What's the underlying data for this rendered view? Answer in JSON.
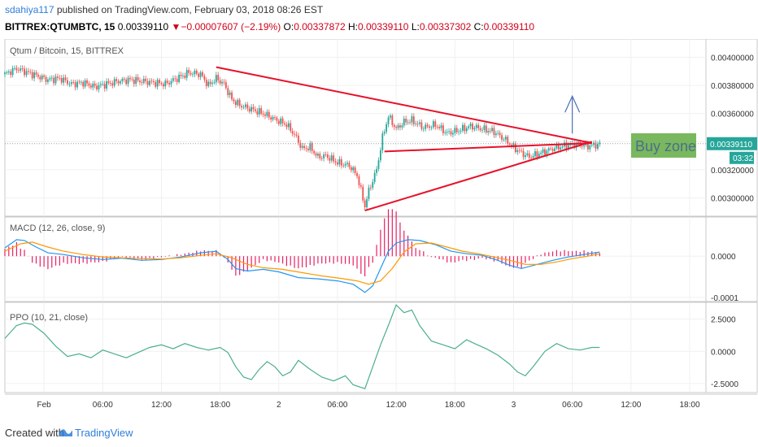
{
  "header": {
    "author": "sdahiya117",
    "published_text": " published on TradingView.com, February 03, 2018 08:26 EST",
    "symbol": "BITTREX:QTUMBTC, 15",
    "last": "0.00339110",
    "change_arrow": "▼",
    "change": "−0.00007607 (−2.19%)",
    "o_label": "O:",
    "o_value": "0.00337872",
    "h_label": "H:",
    "h_value": "0.00339110",
    "l_label": "L:",
    "l_value": "0.00337302",
    "c_label": "C:",
    "c_value": "0.00339110"
  },
  "footer": {
    "created_with": "Created with",
    "brand": "TradingView",
    "logo_icon": "tradingview-logo-icon"
  },
  "colors": {
    "up": "#26a69a",
    "down": "#ef5350",
    "trend": "#e8102a",
    "macd": "#2196f3",
    "signal": "#ff9800",
    "hist": "#e91e63",
    "ppo": "#4caf8a",
    "buyzone": "#6ab04c",
    "arrow": "#4a6fb5"
  },
  "chart_data": [
    {
      "type": "candlestick",
      "title": "Qtum / Bitcoin, 15, BITTREX",
      "y_ticks": [
        "0.00400000",
        "0.00380000",
        "0.00360000",
        "0.00340000",
        "0.00320000",
        "0.00300000"
      ],
      "y_tick_values": [
        0.004,
        0.0038,
        0.0036,
        0.0034,
        0.0032,
        0.003
      ],
      "ylim": [
        0.00287,
        0.00413
      ],
      "last_price_label": "0.00339110",
      "countdown_label": "03:32",
      "annotation_text": "Buy zone",
      "price_path": [
        [
          0,
          0.00388
        ],
        [
          6,
          0.00392
        ],
        [
          10,
          0.0039
        ],
        [
          16,
          0.00387
        ],
        [
          22,
          0.00384
        ],
        [
          28,
          0.00385
        ],
        [
          34,
          0.00381
        ],
        [
          40,
          0.00382
        ],
        [
          46,
          0.00379
        ],
        [
          52,
          0.00381
        ],
        [
          58,
          0.00383
        ],
        [
          64,
          0.00384
        ],
        [
          70,
          0.00383
        ],
        [
          76,
          0.00382
        ],
        [
          82,
          0.00381
        ],
        [
          88,
          0.00385
        ],
        [
          94,
          0.00389
        ],
        [
          100,
          0.00388
        ],
        [
          104,
          0.0038
        ],
        [
          108,
          0.00385
        ],
        [
          112,
          0.00381
        ],
        [
          116,
          0.0037
        ],
        [
          120,
          0.00366
        ],
        [
          126,
          0.00363
        ],
        [
          132,
          0.0036
        ],
        [
          138,
          0.00356
        ],
        [
          144,
          0.00352
        ],
        [
          148,
          0.00345
        ],
        [
          152,
          0.00335
        ],
        [
          156,
          0.00336
        ],
        [
          160,
          0.00329
        ],
        [
          164,
          0.0033
        ],
        [
          170,
          0.00325
        ],
        [
          176,
          0.00323
        ],
        [
          180,
          0.00316
        ],
        [
          184,
          0.00294
        ],
        [
          186,
          0.00305
        ],
        [
          190,
          0.0032
        ],
        [
          193,
          0.00343
        ],
        [
          196,
          0.00358
        ],
        [
          200,
          0.00349
        ],
        [
          204,
          0.00354
        ],
        [
          208,
          0.00355
        ],
        [
          214,
          0.0035
        ],
        [
          220,
          0.00352
        ],
        [
          226,
          0.00346
        ],
        [
          232,
          0.00348
        ],
        [
          238,
          0.00351
        ],
        [
          244,
          0.00349
        ],
        [
          250,
          0.00347
        ],
        [
          256,
          0.00341
        ],
        [
          260,
          0.00336
        ],
        [
          264,
          0.00332
        ],
        [
          268,
          0.00329
        ],
        [
          272,
          0.00331
        ],
        [
          276,
          0.00333
        ],
        [
          280,
          0.00335
        ],
        [
          286,
          0.00337
        ],
        [
          292,
          0.00338
        ],
        [
          298,
          0.00337
        ],
        [
          304,
          0.00338
        ]
      ],
      "trendlines": [
        {
          "from": [
            108,
            0.00393
          ],
          "to": [
            300,
            0.00339
          ]
        },
        {
          "from": [
            184,
            0.00291
          ],
          "to": [
            300,
            0.0034
          ]
        },
        {
          "from": [
            194,
            0.00333
          ],
          "to": [
            300,
            0.00339
          ]
        }
      ],
      "arrow_point": [
        290,
        0.0034
      ]
    },
    {
      "type": "line",
      "title": "MACD (12, 26, close, 9)",
      "y_ticks": [
        "0.0000",
        "-0.0001"
      ],
      "y_tick_values": [
        0.0,
        -0.0001
      ],
      "ylim": [
        -0.00011,
        9.5e-05
      ],
      "series": [
        {
          "name": "",
          "style": "macd",
          "points": [
            [
              0,
              2e-05
            ],
            [
              6,
              4e-05
            ],
            [
              10,
              3.8e-05
            ],
            [
              16,
              2.2e-05
            ],
            [
              22,
              8e-06
            ],
            [
              30,
              4e-06
            ],
            [
              40,
              -4e-06
            ],
            [
              50,
              -8e-06
            ],
            [
              60,
              -5e-06
            ],
            [
              70,
              -1e-05
            ],
            [
              80,
              -8e-06
            ],
            [
              90,
              -2e-06
            ],
            [
              100,
              8e-06
            ],
            [
              108,
              1.2e-05
            ],
            [
              114,
              -8e-06
            ],
            [
              118,
              -3e-05
            ],
            [
              124,
              -3.6e-05
            ],
            [
              132,
              -3.2e-05
            ],
            [
              140,
              -3.8e-05
            ],
            [
              150,
              -5.2e-05
            ],
            [
              160,
              -5.5e-05
            ],
            [
              170,
              -6e-05
            ],
            [
              178,
              -6.8e-05
            ],
            [
              184,
              -8.8e-05
            ],
            [
              188,
              -7.2e-05
            ],
            [
              192,
              -3e-05
            ],
            [
              196,
              1.2e-05
            ],
            [
              200,
              3.2e-05
            ],
            [
              206,
              4e-05
            ],
            [
              212,
              3.8e-05
            ],
            [
              220,
              2.8e-05
            ],
            [
              228,
              1.2e-05
            ],
            [
              236,
              6e-06
            ],
            [
              244,
              2e-06
            ],
            [
              252,
              -1e-05
            ],
            [
              258,
              -2.2e-05
            ],
            [
              264,
              -3e-05
            ],
            [
              272,
              -2e-05
            ],
            [
              280,
              -1e-05
            ],
            [
              288,
              -2e-06
            ],
            [
              296,
              4e-06
            ],
            [
              304,
              1e-05
            ]
          ]
        },
        {
          "name": "",
          "style": "signal",
          "points": [
            [
              0,
              1.2e-05
            ],
            [
              8,
              3e-05
            ],
            [
              14,
              3.4e-05
            ],
            [
              22,
              2.2e-05
            ],
            [
              30,
              1.2e-05
            ],
            [
              40,
              4e-06
            ],
            [
              50,
              -2e-06
            ],
            [
              60,
              -4e-06
            ],
            [
              70,
              -6e-06
            ],
            [
              80,
              -7e-06
            ],
            [
              90,
              -4e-06
            ],
            [
              100,
              2e-06
            ],
            [
              108,
              6e-06
            ],
            [
              116,
              -4e-06
            ],
            [
              124,
              -2e-05
            ],
            [
              132,
              -2.8e-05
            ],
            [
              142,
              -3.2e-05
            ],
            [
              152,
              -4e-05
            ],
            [
              162,
              -4.8e-05
            ],
            [
              172,
              -5.4e-05
            ],
            [
              180,
              -6e-05
            ],
            [
              186,
              -6.8e-05
            ],
            [
              192,
              -6e-05
            ],
            [
              198,
              -3e-05
            ],
            [
              204,
              1e-05
            ],
            [
              210,
              3e-05
            ],
            [
              218,
              3.2e-05
            ],
            [
              226,
              2.2e-05
            ],
            [
              234,
              1.2e-05
            ],
            [
              242,
              6e-06
            ],
            [
              250,
              -2e-06
            ],
            [
              258,
              -1e-05
            ],
            [
              266,
              -2e-05
            ],
            [
              274,
              -2e-05
            ],
            [
              282,
              -1.4e-05
            ],
            [
              290,
              -6e-06
            ],
            [
              298,
              0.0
            ],
            [
              304,
              6e-06
            ]
          ]
        }
      ]
    },
    {
      "type": "line",
      "title": "PPO (10, 21, close)",
      "y_ticks": [
        "2.5000",
        "0.0000",
        "-2.5000"
      ],
      "y_tick_values": [
        2.5,
        0.0,
        -2.5
      ],
      "ylim": [
        -3.2,
        3.8
      ],
      "series": [
        {
          "name": "",
          "style": "ppo",
          "points": [
            [
              0,
              1.0
            ],
            [
              6,
              2.0
            ],
            [
              10,
              2.2
            ],
            [
              14,
              2.1
            ],
            [
              20,
              1.4
            ],
            [
              26,
              0.4
            ],
            [
              32,
              -0.4
            ],
            [
              38,
              -0.2
            ],
            [
              44,
              -0.5
            ],
            [
              50,
              0.1
            ],
            [
              56,
              -0.2
            ],
            [
              62,
              -0.5
            ],
            [
              68,
              -0.1
            ],
            [
              74,
              0.3
            ],
            [
              80,
              0.5
            ],
            [
              86,
              0.2
            ],
            [
              92,
              0.6
            ],
            [
              98,
              0.3
            ],
            [
              104,
              0.1
            ],
            [
              110,
              0.3
            ],
            [
              114,
              -0.1
            ],
            [
              118,
              -1.2
            ],
            [
              122,
              -2.0
            ],
            [
              126,
              -2.2
            ],
            [
              130,
              -1.4
            ],
            [
              134,
              -0.8
            ],
            [
              138,
              -1.2
            ],
            [
              142,
              -1.9
            ],
            [
              146,
              -1.6
            ],
            [
              150,
              -0.7
            ],
            [
              156,
              -1.4
            ],
            [
              162,
              -2.0
            ],
            [
              168,
              -2.3
            ],
            [
              174,
              -1.9
            ],
            [
              178,
              -2.6
            ],
            [
              184,
              -2.9
            ],
            [
              188,
              -1.2
            ],
            [
              192,
              0.5
            ],
            [
              196,
              2.0
            ],
            [
              200,
              3.6
            ],
            [
              204,
              3.0
            ],
            [
              208,
              3.2
            ],
            [
              212,
              2.0
            ],
            [
              218,
              0.8
            ],
            [
              224,
              0.5
            ],
            [
              230,
              0.2
            ],
            [
              236,
              0.9
            ],
            [
              240,
              0.6
            ],
            [
              246,
              0.2
            ],
            [
              252,
              -0.3
            ],
            [
              258,
              -1.0
            ],
            [
              262,
              -1.6
            ],
            [
              266,
              -1.9
            ],
            [
              270,
              -1.2
            ],
            [
              276,
              0.0
            ],
            [
              282,
              0.6
            ],
            [
              288,
              0.2
            ],
            [
              294,
              0.1
            ],
            [
              300,
              0.3
            ],
            [
              304,
              0.3
            ]
          ]
        }
      ]
    }
  ],
  "x_axis": {
    "ticks": [
      "Feb",
      "06:00",
      "12:00",
      "18:00",
      "2",
      "06:00",
      "12:00",
      "18:00",
      "3",
      "06:00",
      "12:00",
      "18:00"
    ],
    "tick_bars": [
      20,
      50,
      80,
      110,
      140,
      170,
      200,
      230,
      260,
      290,
      320,
      350
    ]
  }
}
